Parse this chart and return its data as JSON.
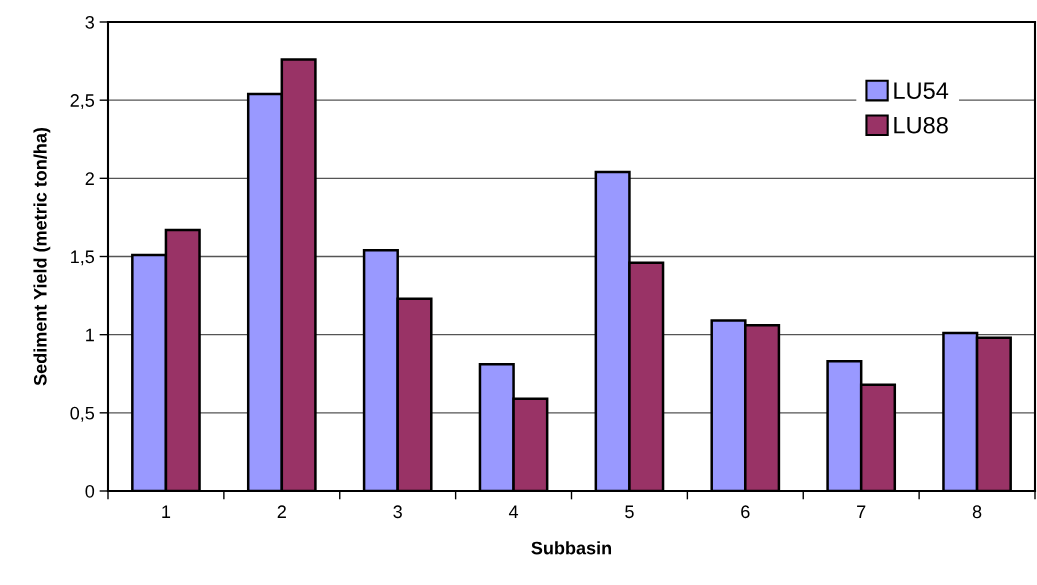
{
  "chart_data": {
    "type": "bar",
    "xlabel": "Subbasin",
    "ylabel": "Sediment Yield (metric ton/ha)",
    "categories": [
      "1",
      "2",
      "3",
      "4",
      "5",
      "6",
      "7",
      "8"
    ],
    "series": [
      {
        "name": "LU54",
        "color": "#9999ff",
        "values": [
          1.51,
          2.54,
          1.54,
          0.81,
          2.04,
          1.09,
          0.83,
          1.01
        ]
      },
      {
        "name": "LU88",
        "color": "#993366",
        "values": [
          1.67,
          2.76,
          1.23,
          0.59,
          1.46,
          1.06,
          0.68,
          0.98
        ]
      }
    ],
    "ylim": [
      0,
      3
    ],
    "yticks": [
      0,
      {
        "value": 0.5,
        "label": "0,5"
      },
      1,
      {
        "value": 1.5,
        "label": "1,5"
      },
      2,
      {
        "value": 2.5,
        "label": "2,5"
      },
      3
    ],
    "grid": "y",
    "legend": "top right"
  }
}
